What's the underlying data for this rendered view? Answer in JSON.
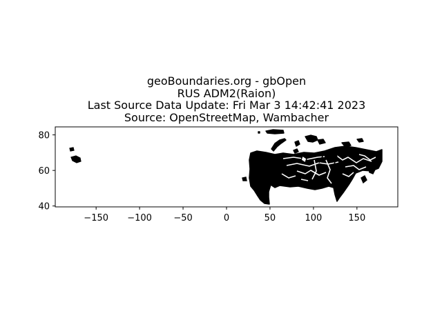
{
  "title_lines": [
    "geoBoundaries.org - gbOpen",
    "RUS ADM2(Raion)",
    "Last Source Data Update: Fri Mar 3 14:42:41 2023",
    "Source: OpenStreetMap, Wambacher"
  ],
  "chart_data": {
    "type": "map",
    "xlim": [
      -197,
      197
    ],
    "ylim": [
      39.5,
      84.5
    ],
    "x_ticks": [
      -150,
      -100,
      -50,
      0,
      50,
      100,
      150
    ],
    "x_tick_labels": [
      "−150",
      "−100",
      "−50",
      "0",
      "50",
      "100",
      "150"
    ],
    "y_ticks": [
      40,
      60,
      80
    ],
    "y_tick_labels": [
      "40",
      "60",
      "80"
    ],
    "grid": false,
    "colors": {
      "boundary": "#000000",
      "background": "#ffffff"
    }
  }
}
